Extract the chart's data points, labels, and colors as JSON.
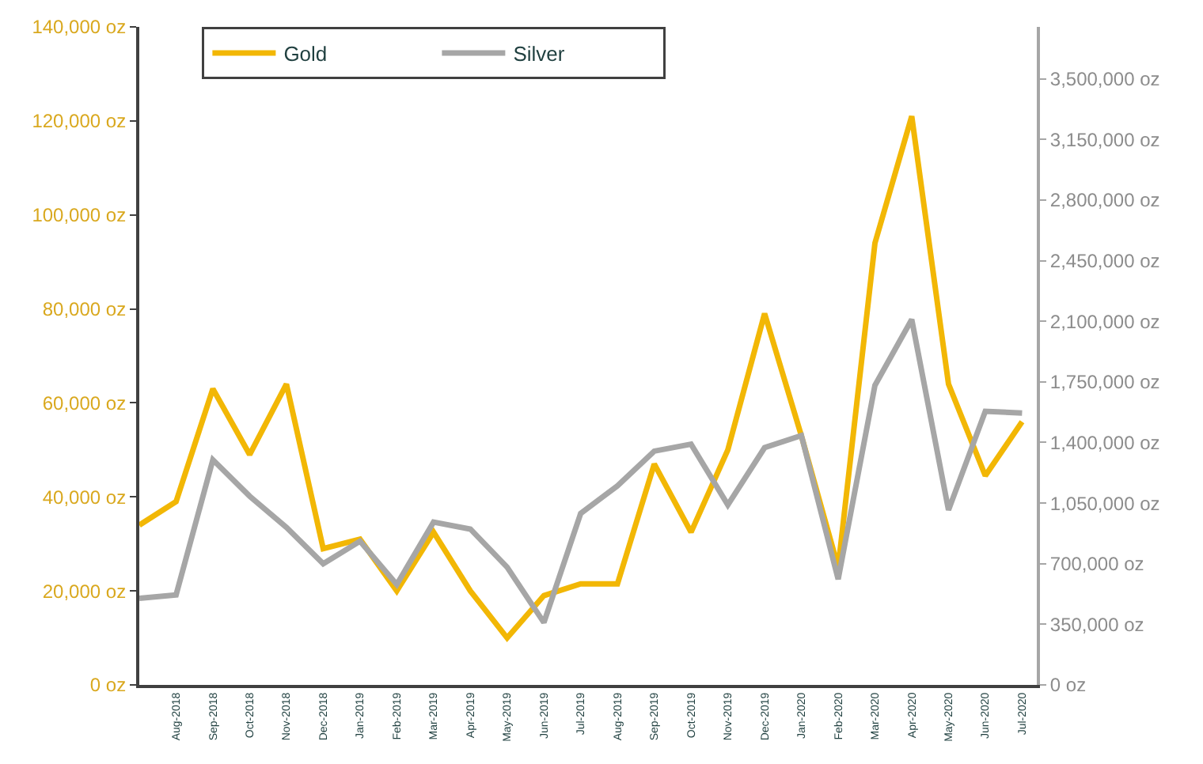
{
  "chart_data": {
    "type": "line",
    "categories": [
      null,
      "Aug-2018",
      "Sep-2018",
      "Oct-2018",
      "Nov-2018",
      "Dec-2018",
      "Jan-2019",
      "Feb-2019",
      "Mar-2019",
      "Apr-2019",
      "May-2019",
      "Jun-2019",
      "Jul-2019",
      "Aug-2019",
      "Sep-2019",
      "Oct-2019",
      "Nov-2019",
      "Dec-2019",
      "Jan-2020",
      "Feb-2020",
      "Mar-2020",
      "Apr-2020",
      "May-2020",
      "Jun-2020",
      "Jul-2020"
    ],
    "series": [
      {
        "name": "Gold",
        "color": "#f2b705",
        "values": [
          34000,
          39000,
          63000,
          49000,
          64000,
          29000,
          31000,
          20000,
          32500,
          20000,
          10000,
          19000,
          21500,
          21500,
          47000,
          32500,
          50000,
          79000,
          53000,
          25000,
          94000,
          121000,
          64000,
          44500,
          56000
        ]
      },
      {
        "name": "Silver",
        "color": "#a6a6a6",
        "axis": "y2",
        "values": [
          500000,
          520000,
          1300000,
          1090000,
          910000,
          700000,
          830000,
          580000,
          940000,
          900000,
          680000,
          360000,
          990000,
          1150000,
          1350000,
          1390000,
          1040000,
          1370000,
          1440000,
          610000,
          1730000,
          2110000,
          1010000,
          1580000,
          1570000
        ]
      }
    ],
    "ylim": [
      0,
      140000
    ],
    "yticks": [
      {
        "value": 0,
        "label": "0 oz"
      },
      {
        "value": 20000,
        "label": "20,000 oz"
      },
      {
        "value": 40000,
        "label": "40,000 oz"
      },
      {
        "value": 60000,
        "label": "60,000 oz"
      },
      {
        "value": 80000,
        "label": "80,000 oz"
      },
      {
        "value": 100000,
        "label": "100,000 oz"
      },
      {
        "value": 120000,
        "label": "120,000 oz"
      },
      {
        "value": 140000,
        "label": "140,000 oz"
      }
    ],
    "y2lim": [
      0,
      3800000
    ],
    "y2ticks": [
      {
        "value": 0,
        "label": "0 oz"
      },
      {
        "value": 350000,
        "label": "350,000 oz"
      },
      {
        "value": 700000,
        "label": "700,000 oz"
      },
      {
        "value": 1050000,
        "label": "1,050,000 oz"
      },
      {
        "value": 1400000,
        "label": "1,400,000 oz"
      },
      {
        "value": 1750000,
        "label": "1,750,000 oz"
      },
      {
        "value": 2100000,
        "label": "2,100,000 oz"
      },
      {
        "value": 2450000,
        "label": "2,450,000 oz"
      },
      {
        "value": 2800000,
        "label": "2,800,000 oz"
      },
      {
        "value": 3150000,
        "label": "3,150,000 oz"
      },
      {
        "value": 3500000,
        "label": "3,500,000 oz"
      }
    ],
    "legend": "top left",
    "marker": "none",
    "line_style": "solid"
  }
}
